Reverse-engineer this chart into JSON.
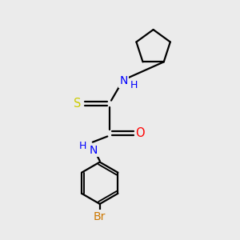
{
  "background_color": "#ebebeb",
  "bond_color": "#000000",
  "atom_colors": {
    "S": "#cccc00",
    "N": "#0000ff",
    "H": "#0000ff",
    "O": "#ff0000",
    "Br": "#cc7700",
    "C": "#000000"
  },
  "figsize": [
    3.0,
    3.0
  ],
  "dpi": 100
}
